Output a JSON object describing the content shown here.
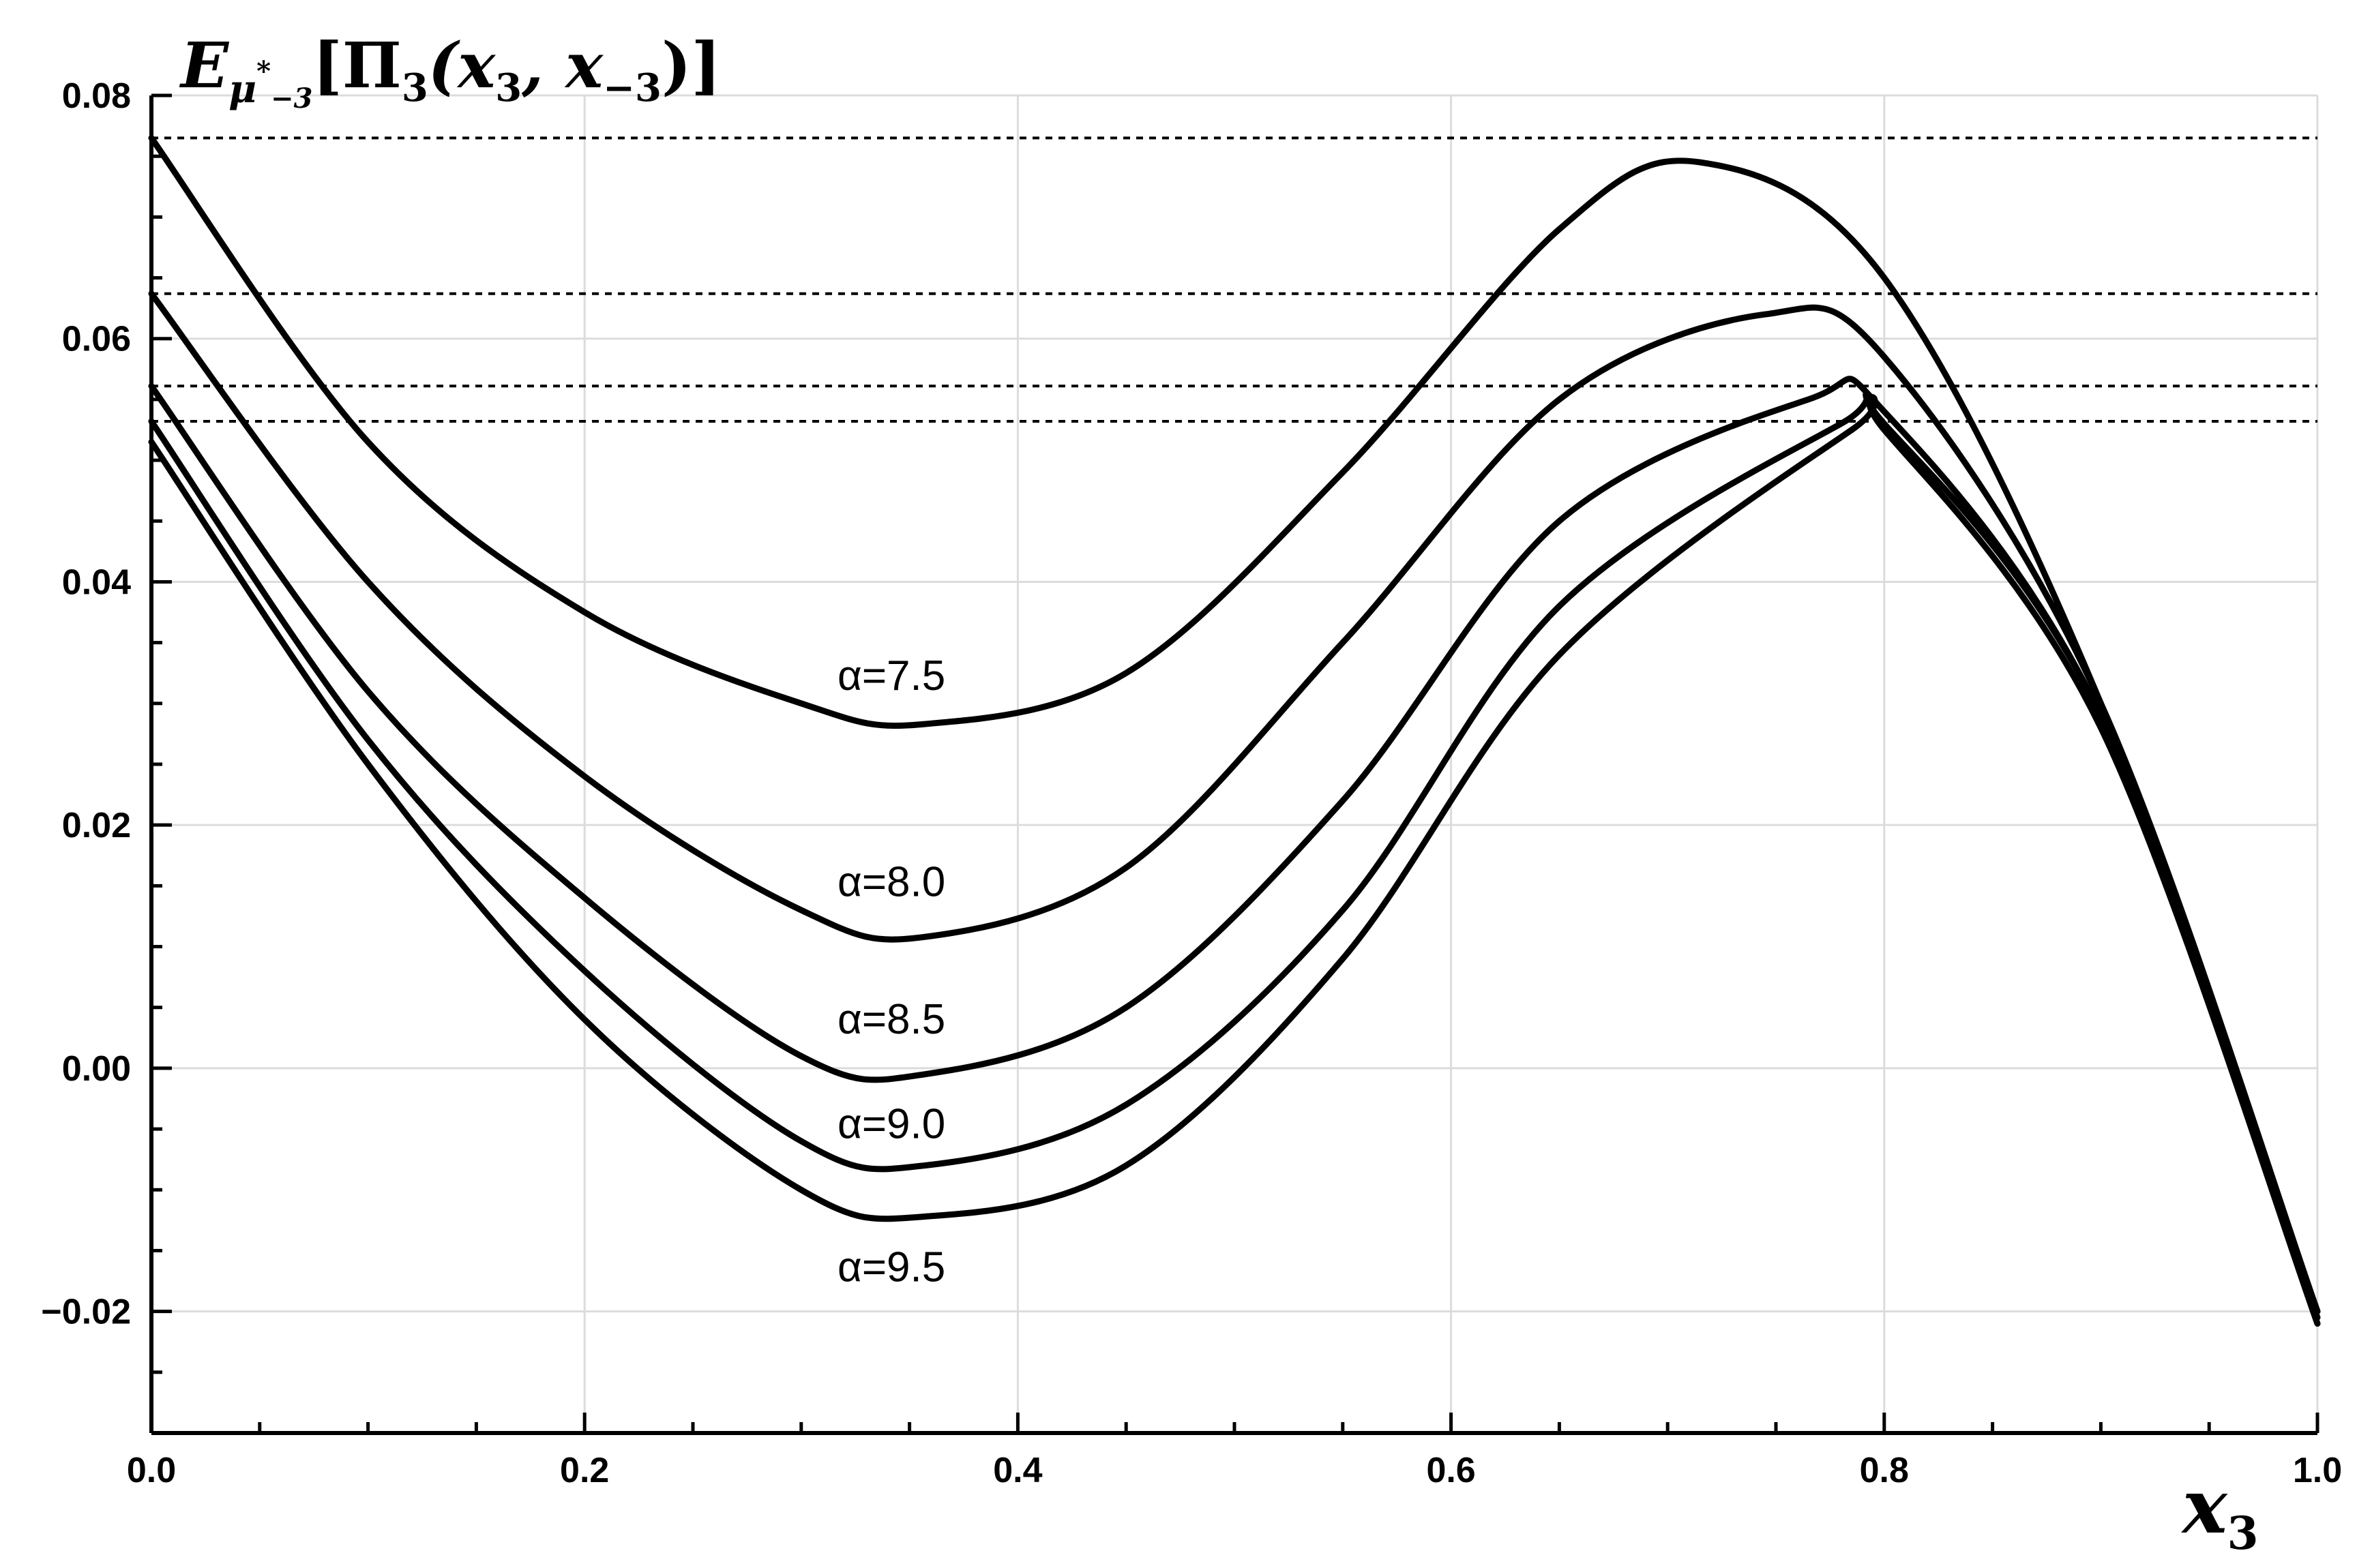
{
  "chart_data": {
    "type": "line",
    "ylabel": "E_{μ*_{-3}}[Π_3(x_3, x_{-3})]",
    "ylabel_parts": {
      "main": "E",
      "sub_mu": "μ",
      "sub_star": "*",
      "sub_idx": "−3",
      "bracket_open": "[Π",
      "pi_sub": "3",
      "args": "(x",
      "arg1_sub": "3",
      "comma": ", x",
      "arg2_sub": "−3",
      "close": ")]"
    },
    "xlabel": "x3",
    "xlabel_parts": {
      "main": "x",
      "sub": "3"
    },
    "xlim": [
      0.0,
      1.0
    ],
    "ylim": [
      -0.03,
      0.08
    ],
    "xticks": [
      0.0,
      0.2,
      0.4,
      0.6,
      0.8,
      1.0
    ],
    "xtick_labels": [
      "0.0",
      "0.2",
      "0.4",
      "0.6",
      "0.8",
      "1.0"
    ],
    "yticks": [
      -0.02,
      0.0,
      0.02,
      0.04,
      0.06,
      0.08
    ],
    "ytick_labels": [
      "−0.02",
      "0.00",
      "0.02",
      "0.04",
      "0.06",
      "0.08"
    ],
    "grid": true,
    "reference_lines_y": [
      0.0765,
      0.0637,
      0.0561,
      0.0532
    ],
    "series": [
      {
        "name": "α=7.5",
        "x": [
          0.0,
          0.1,
          0.2,
          0.3,
          0.357,
          0.45,
          0.55,
          0.65,
          0.715,
          0.8,
          0.9,
          1.0
        ],
        "y": [
          0.0765,
          0.0515,
          0.0375,
          0.03,
          0.0283,
          0.0325,
          0.049,
          0.069,
          0.0745,
          0.065,
          0.03,
          -0.02
        ]
      },
      {
        "name": "α=8.0",
        "x": [
          0.0,
          0.1,
          0.2,
          0.3,
          0.357,
          0.45,
          0.55,
          0.65,
          0.745,
          0.8,
          0.9,
          1.0
        ],
        "y": [
          0.0637,
          0.04,
          0.024,
          0.013,
          0.0108,
          0.0165,
          0.035,
          0.055,
          0.062,
          0.0585,
          0.03,
          -0.02
        ]
      },
      {
        "name": "α=8.5",
        "x": [
          0.0,
          0.1,
          0.2,
          0.3,
          0.357,
          0.45,
          0.55,
          0.65,
          0.765,
          0.8,
          0.9,
          1.0
        ],
        "y": [
          0.0561,
          0.031,
          0.014,
          0.001,
          -0.0005,
          0.005,
          0.022,
          0.045,
          0.055,
          0.054,
          0.029,
          -0.0205
        ]
      },
      {
        "name": "α=9.0",
        "x": [
          0.0,
          0.1,
          0.2,
          0.3,
          0.357,
          0.45,
          0.55,
          0.65,
          0.78,
          0.8,
          0.9,
          1.0
        ],
        "y": [
          0.0532,
          0.027,
          0.008,
          -0.006,
          -0.008,
          -0.003,
          0.013,
          0.038,
          0.053,
          0.053,
          0.029,
          -0.021
        ]
      },
      {
        "name": "α=9.5",
        "x": [
          0.0,
          0.1,
          0.2,
          0.3,
          0.357,
          0.45,
          0.55,
          0.65,
          0.785,
          0.8,
          0.9,
          1.0
        ],
        "y": [
          0.0515,
          0.025,
          0.004,
          -0.01,
          -0.0122,
          -0.008,
          0.009,
          0.034,
          0.0525,
          0.0525,
          0.028,
          -0.021
        ]
      }
    ],
    "curve_labels": [
      "α=7.5",
      "α=8.0",
      "α=8.5",
      "α=9.0",
      "α=9.5"
    ]
  }
}
